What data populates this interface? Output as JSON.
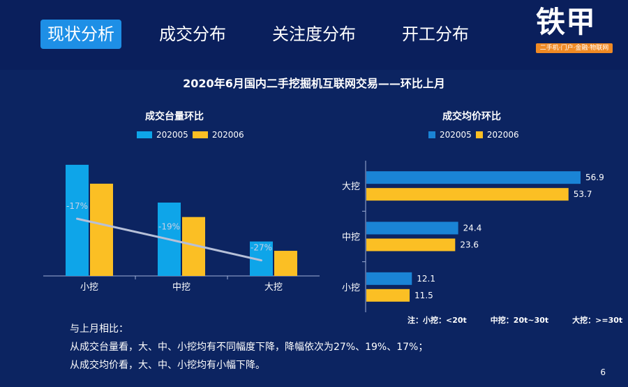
{
  "nav": {
    "tabs": [
      {
        "label": "现状分析",
        "active": true
      },
      {
        "label": "成交分布",
        "active": false
      },
      {
        "label": "关注度分布",
        "active": false
      },
      {
        "label": "开工分布",
        "active": false
      }
    ]
  },
  "logo": {
    "text": "铁甲",
    "tagline": "二手机·门户·金融·物联网"
  },
  "subtitle": "2020年6月国内二手挖掘机互联网交易——环比上月",
  "colors": {
    "series1": "#0ea5e9",
    "series2": "#fbbf24",
    "series1_h": "#1a84d6",
    "line": "#b7c0d8"
  },
  "chart_data": [
    {
      "type": "bar",
      "title": "成交台量环比",
      "categories": [
        "小挖",
        "中挖",
        "大挖"
      ],
      "series": [
        {
          "name": "202005",
          "values": [
            100,
            66,
            31
          ]
        },
        {
          "name": "202006",
          "values": [
            83,
            53,
            22.6
          ]
        }
      ],
      "line_labels": [
        "-17%",
        "-19%",
        "-27%"
      ],
      "ylim": [
        0,
        110
      ]
    },
    {
      "type": "bar",
      "orientation": "horizontal",
      "title": "成交均价环比",
      "categories": [
        "大挖",
        "中挖",
        "小挖"
      ],
      "series": [
        {
          "name": "202005",
          "values": [
            56.9,
            24.4,
            12.1
          ]
        },
        {
          "name": "202006",
          "values": [
            53.7,
            23.6,
            11.5
          ]
        }
      ],
      "xlim": [
        0,
        60
      ]
    }
  ],
  "note": [
    "注：小挖：<20t",
    "中挖：20t~30t",
    "大挖：>=30t"
  ],
  "summary": [
    "与上月相比：",
    "从成交台量看，大、中、小挖均有不同幅度下降，降幅依次为27%、19%、17%；",
    "从成交均价看，大、中、小挖均有小幅下降。"
  ],
  "page_number": "6"
}
